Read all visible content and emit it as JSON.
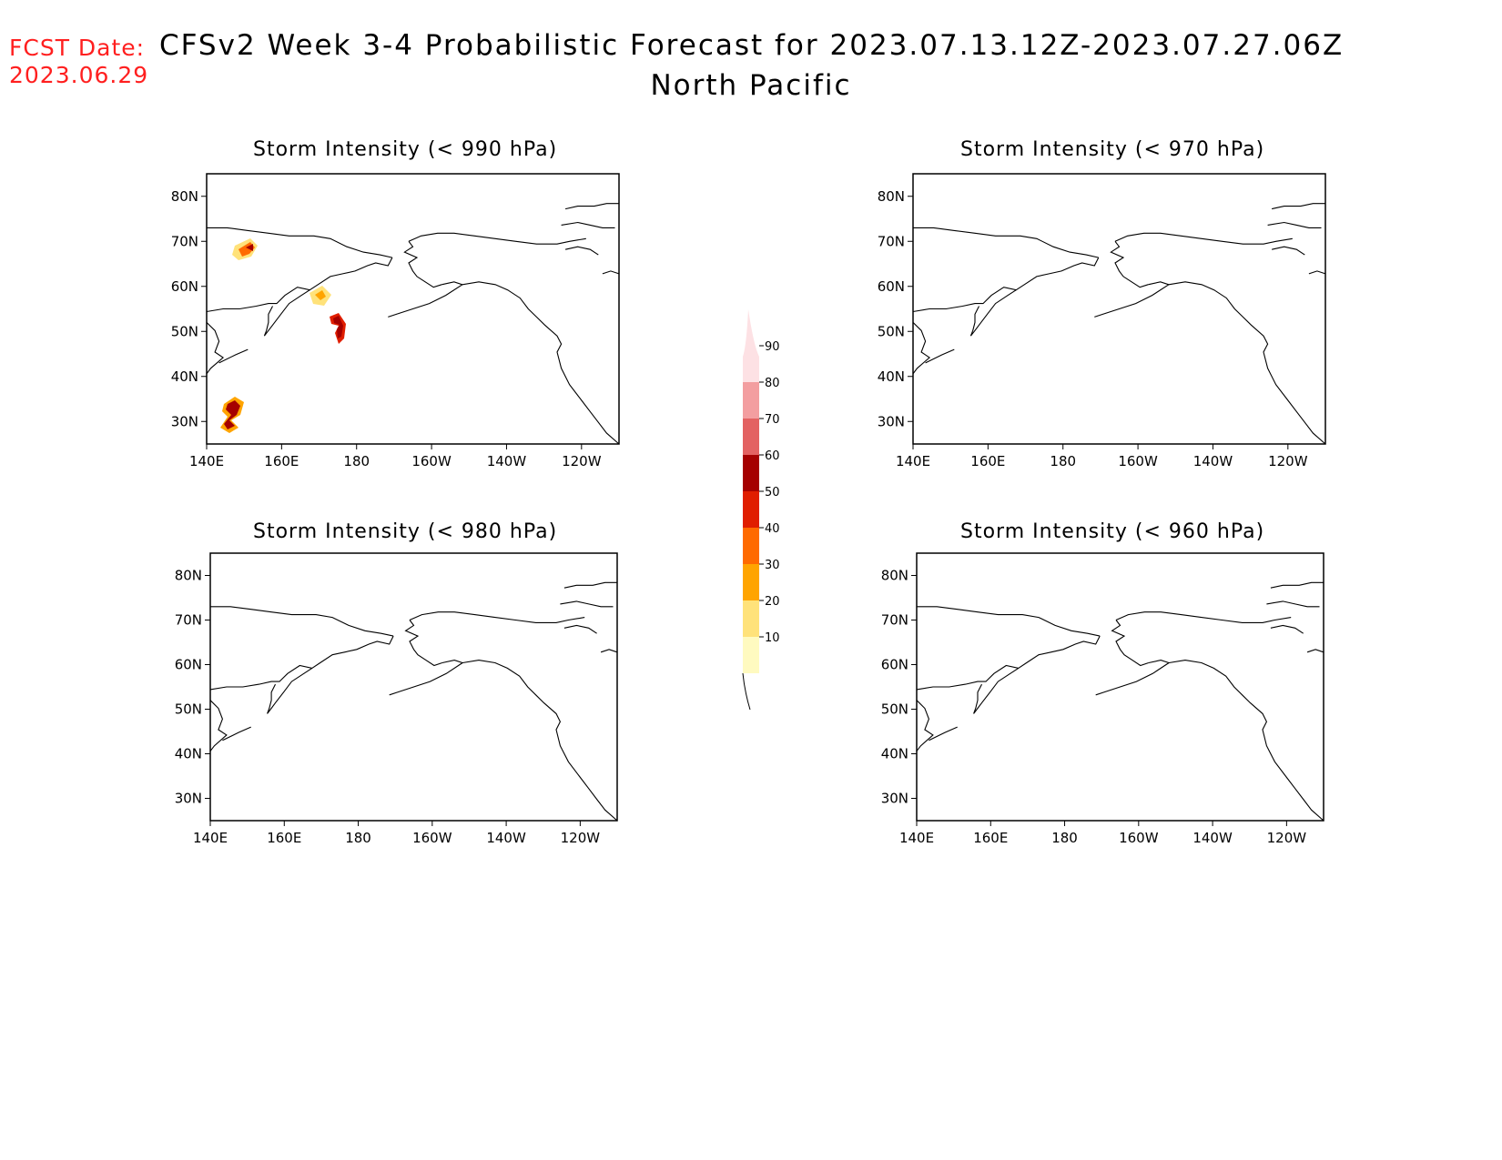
{
  "header": {
    "fcst_label": "FCST Date:",
    "fcst_date": "2023.06.29",
    "title": "CFSv2 Week 3-4 Probabilistic Forecast for 2023.07.13.12Z-2023.07.27.06Z",
    "region": "North Pacific"
  },
  "axes": {
    "lon_ticks": [
      "140E",
      "160E",
      "180",
      "160W",
      "140W",
      "120W"
    ],
    "lat_ticks": [
      "80N",
      "70N",
      "60N",
      "50N",
      "40N",
      "30N"
    ]
  },
  "panels": [
    {
      "title": "Storm Intensity (< 990 hPa)"
    },
    {
      "title": "Storm Intensity (< 970 hPa)"
    },
    {
      "title": "Storm Intensity (< 980 hPa)"
    },
    {
      "title": "Storm Intensity (< 960 hPa)"
    }
  ],
  "colorbar": {
    "levels": [
      "10",
      "20",
      "30",
      "40",
      "50",
      "60",
      "70",
      "80",
      "90"
    ],
    "colors": [
      "#fffac0",
      "#ffe27a",
      "#ffa400",
      "#ff6a00",
      "#e01e00",
      "#a50000",
      "#e36262",
      "#f39ea0",
      "#fde1e4"
    ]
  }
}
